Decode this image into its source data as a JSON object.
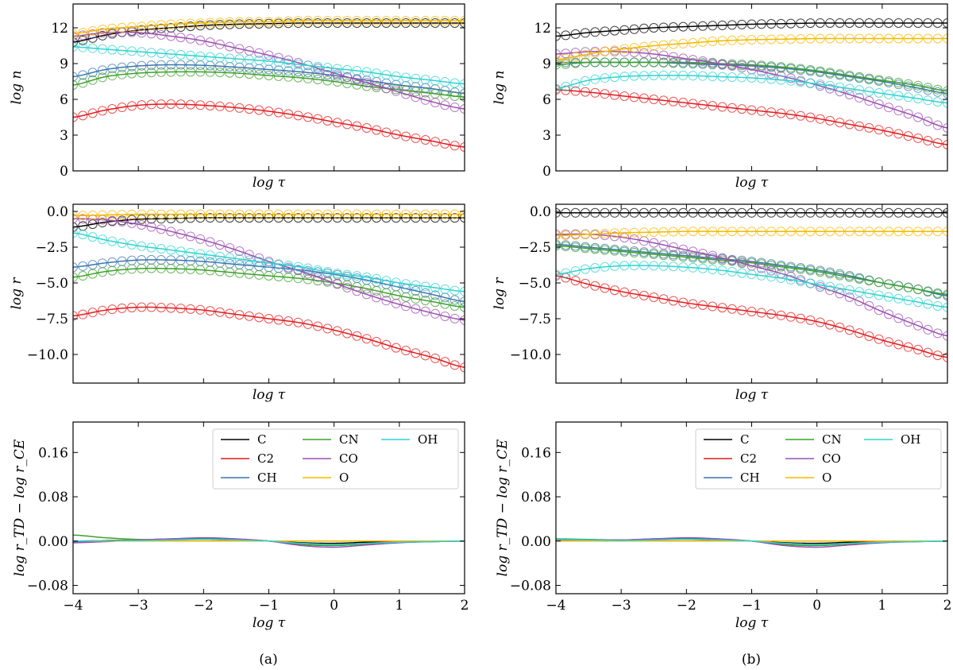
{
  "captions": [
    "(a)",
    "(b)"
  ],
  "colors": {
    "C": "#000000",
    "C2": "#e31a1c",
    "CH": "#3b75af",
    "CN": "#3ca02c",
    "CO": "#9c4fb0",
    "O": "#f5b800",
    "OH": "#2ed3d0"
  },
  "chart_data": [
    {
      "type": "line",
      "panel": "a",
      "row": 1,
      "title": "",
      "xlabel": "log τ",
      "ylabel": "log n",
      "xlim": [
        -4,
        2
      ],
      "ylim": [
        0,
        14
      ],
      "yticks": [
        0,
        3,
        6,
        9,
        12
      ],
      "ytick_labels": [
        "0",
        "3",
        "6",
        "9",
        "12"
      ],
      "xticks": [
        -4,
        -3,
        -2,
        -1,
        0,
        1,
        2
      ],
      "show_xtick_labels": false,
      "markers": true,
      "x": [
        -4,
        -3.5,
        -3,
        -2.5,
        -2,
        -1.5,
        -1,
        -0.5,
        0,
        0.5,
        1,
        1.5,
        2
      ],
      "series": [
        {
          "name": "C",
          "values": [
            10.8,
            11.4,
            11.8,
            12.0,
            12.2,
            12.3,
            12.35,
            12.4,
            12.4,
            12.4,
            12.4,
            12.4,
            12.4
          ]
        },
        {
          "name": "C2",
          "values": [
            4.5,
            5.1,
            5.5,
            5.6,
            5.5,
            5.3,
            5.0,
            4.6,
            4.1,
            3.6,
            3.0,
            2.5,
            2.0
          ]
        },
        {
          "name": "CH",
          "values": [
            7.9,
            8.5,
            8.8,
            8.9,
            8.85,
            8.7,
            8.5,
            8.3,
            8.0,
            7.6,
            7.2,
            6.9,
            6.5
          ]
        },
        {
          "name": "CN",
          "values": [
            7.2,
            7.9,
            8.2,
            8.3,
            8.3,
            8.2,
            8.0,
            7.8,
            7.5,
            7.1,
            6.8,
            6.5,
            6.2
          ]
        },
        {
          "name": "CO",
          "values": [
            11.3,
            11.6,
            11.6,
            11.3,
            10.9,
            10.3,
            9.7,
            9.0,
            8.2,
            7.4,
            6.6,
            5.8,
            5.2
          ]
        },
        {
          "name": "O",
          "values": [
            11.5,
            11.9,
            12.1,
            12.3,
            12.4,
            12.5,
            12.5,
            12.6,
            12.6,
            12.6,
            12.6,
            12.6,
            12.6
          ]
        },
        {
          "name": "OH",
          "values": [
            10.4,
            10.2,
            10.0,
            9.8,
            9.6,
            9.4,
            9.2,
            8.9,
            8.6,
            8.3,
            7.9,
            7.6,
            7.3
          ]
        }
      ]
    },
    {
      "type": "line",
      "panel": "b",
      "row": 1,
      "title": "",
      "xlabel": "log τ",
      "ylabel": "log n",
      "xlim": [
        -4,
        2
      ],
      "ylim": [
        0,
        14
      ],
      "yticks": [
        0,
        3,
        6,
        9,
        12
      ],
      "ytick_labels": [
        "0",
        "3",
        "6",
        "9",
        "12"
      ],
      "xticks": [
        -4,
        -3,
        -2,
        -1,
        0,
        1,
        2
      ],
      "show_xtick_labels": false,
      "markers": true,
      "x": [
        -4,
        -3.5,
        -3,
        -2.5,
        -2,
        -1.5,
        -1,
        -0.5,
        0,
        0.5,
        1,
        1.5,
        2
      ],
      "series": [
        {
          "name": "C",
          "values": [
            11.3,
            11.6,
            11.8,
            12.0,
            12.1,
            12.2,
            12.3,
            12.35,
            12.4,
            12.4,
            12.4,
            12.4,
            12.4
          ]
        },
        {
          "name": "C2",
          "values": [
            6.8,
            6.6,
            6.3,
            6.0,
            5.7,
            5.4,
            5.1,
            4.8,
            4.4,
            3.9,
            3.4,
            2.8,
            2.2
          ]
        },
        {
          "name": "CH",
          "values": [
            9.1,
            9.1,
            9.1,
            9.1,
            9.0,
            8.9,
            8.8,
            8.6,
            8.3,
            7.9,
            7.5,
            7.0,
            6.5
          ]
        },
        {
          "name": "CN",
          "values": [
            8.9,
            9.1,
            9.1,
            9.1,
            9.1,
            9.0,
            8.9,
            8.7,
            8.4,
            8.0,
            7.6,
            7.2,
            6.7
          ]
        },
        {
          "name": "CO",
          "values": [
            9.8,
            10.0,
            10.0,
            9.8,
            9.4,
            9.0,
            8.5,
            7.9,
            7.2,
            6.4,
            5.5,
            4.6,
            3.6
          ]
        },
        {
          "name": "O",
          "values": [
            9.3,
            9.8,
            10.2,
            10.5,
            10.7,
            10.9,
            11.0,
            11.05,
            11.1,
            11.1,
            11.1,
            11.1,
            11.1
          ]
        },
        {
          "name": "OH",
          "values": [
            6.9,
            7.6,
            7.9,
            8.0,
            8.0,
            7.9,
            7.8,
            7.6,
            7.3,
            6.9,
            6.5,
            6.1,
            5.7
          ]
        }
      ]
    },
    {
      "type": "line",
      "panel": "a",
      "row": 2,
      "title": "",
      "xlabel": "log τ",
      "ylabel": "log r",
      "xlim": [
        -4,
        2
      ],
      "ylim": [
        -12,
        0.5
      ],
      "yticks": [
        -10,
        -7.5,
        -5,
        -2.5,
        0
      ],
      "ytick_labels": [
        "−10.0",
        "−7.5",
        "−5.0",
        "−2.5",
        "0.0"
      ],
      "xticks": [
        -4,
        -3,
        -2,
        -1,
        0,
        1,
        2
      ],
      "show_xtick_labels": false,
      "markers": true,
      "x": [
        -4,
        -3.5,
        -3,
        -2.5,
        -2,
        -1.5,
        -1,
        -0.5,
        0,
        0.5,
        1,
        1.5,
        2
      ],
      "series": [
        {
          "name": "C",
          "values": [
            -1.1,
            -0.75,
            -0.55,
            -0.5,
            -0.45,
            -0.45,
            -0.45,
            -0.45,
            -0.45,
            -0.45,
            -0.45,
            -0.45,
            -0.45
          ]
        },
        {
          "name": "C2",
          "values": [
            -7.3,
            -6.9,
            -6.7,
            -6.75,
            -6.9,
            -7.2,
            -7.5,
            -7.8,
            -8.3,
            -8.9,
            -9.6,
            -10.2,
            -10.9
          ]
        },
        {
          "name": "CH",
          "values": [
            -3.9,
            -3.6,
            -3.4,
            -3.4,
            -3.5,
            -3.7,
            -3.9,
            -4.1,
            -4.4,
            -4.8,
            -5.3,
            -5.8,
            -6.3
          ]
        },
        {
          "name": "CN",
          "values": [
            -4.6,
            -4.2,
            -4.0,
            -4.0,
            -4.1,
            -4.3,
            -4.5,
            -4.7,
            -5.0,
            -5.4,
            -5.9,
            -6.3,
            -6.7
          ]
        },
        {
          "name": "CO",
          "values": [
            -0.5,
            -0.6,
            -0.9,
            -1.4,
            -2.0,
            -2.7,
            -3.5,
            -4.2,
            -5.0,
            -5.8,
            -6.5,
            -7.1,
            -7.6
          ]
        },
        {
          "name": "O",
          "values": [
            -0.3,
            -0.25,
            -0.2,
            -0.2,
            -0.2,
            -0.2,
            -0.2,
            -0.2,
            -0.2,
            -0.2,
            -0.2,
            -0.2,
            -0.2
          ]
        },
        {
          "name": "OH",
          "values": [
            -1.5,
            -2.0,
            -2.4,
            -2.7,
            -3.0,
            -3.3,
            -3.6,
            -3.9,
            -4.3,
            -4.6,
            -5.0,
            -5.3,
            -5.6
          ]
        }
      ]
    },
    {
      "type": "line",
      "panel": "b",
      "row": 2,
      "title": "",
      "xlabel": "log τ",
      "ylabel": "log r",
      "xlim": [
        -4,
        2
      ],
      "ylim": [
        -12,
        0.5
      ],
      "yticks": [
        -10,
        -7.5,
        -5,
        -2.5,
        0
      ],
      "ytick_labels": [
        "−10.0",
        "−7.5",
        "−5.0",
        "−2.5",
        "0.0"
      ],
      "xticks": [
        -4,
        -3,
        -2,
        -1,
        0,
        1,
        2
      ],
      "show_xtick_labels": false,
      "markers": true,
      "x": [
        -4,
        -3.5,
        -3,
        -2.5,
        -2,
        -1.5,
        -1,
        -0.5,
        0,
        0.5,
        1,
        1.5,
        2
      ],
      "series": [
        {
          "name": "C",
          "values": [
            -0.1,
            -0.1,
            -0.1,
            -0.1,
            -0.1,
            -0.1,
            -0.1,
            -0.1,
            -0.1,
            -0.1,
            -0.1,
            -0.1,
            -0.1
          ]
        },
        {
          "name": "C2",
          "values": [
            -4.5,
            -5.1,
            -5.6,
            -6.0,
            -6.4,
            -6.7,
            -7.0,
            -7.3,
            -7.7,
            -8.3,
            -9.0,
            -9.6,
            -10.2
          ]
        },
        {
          "name": "CH",
          "values": [
            -2.3,
            -2.5,
            -2.7,
            -2.9,
            -3.1,
            -3.3,
            -3.5,
            -3.8,
            -4.1,
            -4.5,
            -5.0,
            -5.4,
            -5.9
          ]
        },
        {
          "name": "CN",
          "values": [
            -2.4,
            -2.6,
            -2.8,
            -3.0,
            -3.2,
            -3.4,
            -3.6,
            -3.9,
            -4.2,
            -4.6,
            -5.0,
            -5.4,
            -5.8
          ]
        },
        {
          "name": "CO",
          "values": [
            -1.6,
            -1.6,
            -1.8,
            -2.2,
            -2.7,
            -3.2,
            -3.8,
            -4.4,
            -5.2,
            -6.0,
            -7.0,
            -7.9,
            -8.7
          ]
        },
        {
          "name": "O",
          "values": [
            -1.7,
            -1.6,
            -1.5,
            -1.45,
            -1.4,
            -1.4,
            -1.4,
            -1.4,
            -1.4,
            -1.4,
            -1.4,
            -1.4,
            -1.4
          ]
        },
        {
          "name": "OH",
          "values": [
            -4.4,
            -4.0,
            -3.8,
            -3.8,
            -3.9,
            -4.1,
            -4.4,
            -4.7,
            -5.1,
            -5.5,
            -5.9,
            -6.3,
            -6.7
          ]
        }
      ]
    },
    {
      "type": "line",
      "panel": "a",
      "row": 3,
      "title": "",
      "xlabel": "log τ",
      "ylabel": "log r_TD − log r_CE",
      "xlim": [
        -4,
        2
      ],
      "ylim": [
        -0.095,
        0.215
      ],
      "yticks": [
        -0.08,
        0,
        0.08,
        0.16
      ],
      "ytick_labels": [
        "−0.08",
        "0.00",
        "0.08",
        "0.16"
      ],
      "xticks": [
        -4,
        -3,
        -2,
        -1,
        0,
        1,
        2
      ],
      "xtick_labels": [
        "−4",
        "−3",
        "−2",
        "−1",
        "0",
        "1",
        "2"
      ],
      "show_xtick_labels": true,
      "markers": false,
      "legend": [
        "C",
        "C2",
        "CH",
        "CN",
        "CO",
        "O",
        "OH"
      ],
      "legend_loc": "top-right",
      "x": [
        -4,
        -3.5,
        -3,
        -2.5,
        -2,
        -1.5,
        -1,
        -0.5,
        0,
        0.5,
        1,
        1.5,
        2
      ],
      "series": [
        {
          "name": "C",
          "values": [
            -0.001,
            0.001,
            0.002,
            0.003,
            0.003,
            0.002,
            0.0,
            -0.003,
            -0.004,
            -0.002,
            0.0,
            0.0,
            0.0
          ]
        },
        {
          "name": "C2",
          "values": [
            0.0,
            0.001,
            0.002,
            0.003,
            0.004,
            0.003,
            0.0,
            -0.004,
            -0.006,
            -0.004,
            -0.001,
            0.0,
            0.0
          ]
        },
        {
          "name": "CH",
          "values": [
            -0.002,
            0.0,
            0.002,
            0.004,
            0.005,
            0.003,
            0.0,
            -0.006,
            -0.008,
            -0.005,
            -0.002,
            -0.001,
            0.0
          ]
        },
        {
          "name": "CN",
          "values": [
            0.011,
            0.006,
            0.003,
            0.003,
            0.004,
            0.003,
            0.0,
            -0.006,
            -0.008,
            -0.005,
            -0.002,
            -0.001,
            0.0
          ]
        },
        {
          "name": "CO",
          "values": [
            -0.003,
            -0.001,
            0.002,
            0.004,
            0.006,
            0.004,
            0.0,
            -0.008,
            -0.011,
            -0.007,
            -0.003,
            -0.001,
            0.0
          ]
        },
        {
          "name": "O",
          "values": [
            0.0,
            0.0,
            0.0,
            0.0,
            0.0,
            0.0,
            0.0,
            0.0,
            0.0,
            0.0,
            0.0,
            0.0,
            0.0
          ]
        },
        {
          "name": "OH",
          "values": [
            0.0,
            0.001,
            0.001,
            0.002,
            0.003,
            0.002,
            0.0,
            -0.004,
            -0.006,
            -0.004,
            -0.002,
            -0.001,
            0.0
          ]
        }
      ]
    },
    {
      "type": "line",
      "panel": "b",
      "row": 3,
      "title": "",
      "xlabel": "log τ",
      "ylabel": "log r_TD − log r_CE",
      "xlim": [
        -4,
        2
      ],
      "ylim": [
        -0.095,
        0.215
      ],
      "yticks": [
        -0.08,
        0,
        0.08,
        0.16
      ],
      "ytick_labels": [
        "−0.08",
        "0.00",
        "0.08",
        "0.16"
      ],
      "xticks": [
        -4,
        -3,
        -2,
        -1,
        0,
        1,
        2
      ],
      "xtick_labels": [
        "−4",
        "−3",
        "−2",
        "−1",
        "0",
        "1",
        "2"
      ],
      "show_xtick_labels": true,
      "markers": false,
      "legend": [
        "C",
        "C2",
        "CH",
        "CN",
        "CO",
        "O",
        "OH"
      ],
      "legend_loc": "top-right",
      "x": [
        -4,
        -3.5,
        -3,
        -2.5,
        -2,
        -1.5,
        -1,
        -0.5,
        0,
        0.5,
        1,
        1.5,
        2
      ],
      "series": [
        {
          "name": "C",
          "values": [
            0.002,
            0.002,
            0.002,
            0.003,
            0.003,
            0.002,
            0.0,
            -0.003,
            -0.004,
            -0.002,
            0.0,
            0.0,
            0.0
          ]
        },
        {
          "name": "C2",
          "values": [
            0.002,
            0.002,
            0.002,
            0.003,
            0.004,
            0.003,
            0.0,
            -0.004,
            -0.006,
            -0.004,
            -0.001,
            0.0,
            0.0
          ]
        },
        {
          "name": "CH",
          "values": [
            0.003,
            0.002,
            0.002,
            0.004,
            0.005,
            0.003,
            0.0,
            -0.006,
            -0.008,
            -0.005,
            -0.002,
            -0.001,
            0.0
          ]
        },
        {
          "name": "CN",
          "values": [
            0.004,
            0.003,
            0.002,
            0.003,
            0.004,
            0.003,
            0.0,
            -0.006,
            -0.008,
            -0.005,
            -0.002,
            -0.001,
            0.0
          ]
        },
        {
          "name": "CO",
          "values": [
            0.002,
            0.002,
            0.002,
            0.004,
            0.006,
            0.004,
            0.0,
            -0.008,
            -0.011,
            -0.007,
            -0.003,
            -0.001,
            0.0
          ]
        },
        {
          "name": "O",
          "values": [
            0.0,
            0.0,
            0.0,
            0.0,
            0.0,
            0.0,
            0.0,
            0.0,
            0.0,
            0.0,
            0.0,
            0.0,
            0.0
          ]
        },
        {
          "name": "OH",
          "values": [
            0.003,
            0.002,
            0.001,
            0.002,
            0.003,
            0.002,
            0.0,
            -0.004,
            -0.006,
            -0.004,
            -0.002,
            -0.001,
            0.0
          ]
        }
      ]
    }
  ]
}
